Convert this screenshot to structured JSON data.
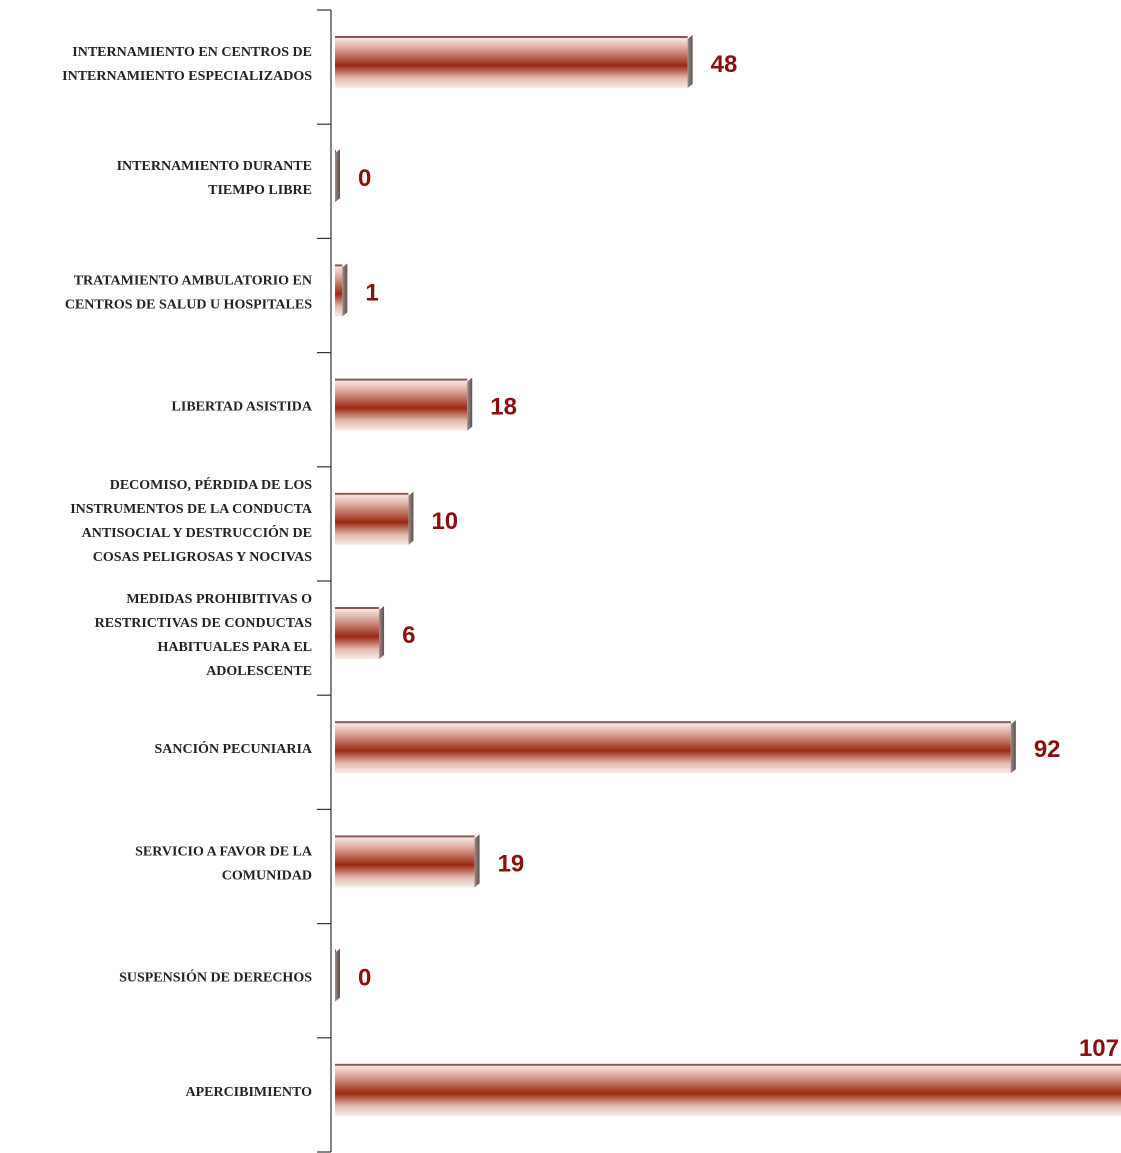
{
  "chart_data": {
    "type": "bar",
    "orientation": "horizontal",
    "title": "",
    "xlabel": "",
    "ylabel": "",
    "grid": false,
    "legend": "none",
    "xlim": [
      0,
      107
    ],
    "categories": [
      [
        "INTERNAMIENTO EN CENTROS DE",
        "INTERNAMIENTO ESPECIALIZADOS"
      ],
      [
        "INTERNAMIENTO DURANTE",
        "TIEMPO LIBRE"
      ],
      [
        "TRATAMIENTO AMBULATORIO EN",
        "CENTROS DE SALUD U HOSPITALES"
      ],
      [
        "LIBERTAD ASISTIDA"
      ],
      [
        "DECOMISO, PÉRDIDA DE LOS",
        "INSTRUMENTOS DE LA CONDUCTA",
        "ANTISOCIAL Y DESTRUCCIÓN DE",
        "COSAS PELIGROSAS Y NOCIVAS"
      ],
      [
        "MEDIDAS PROHIBITIVAS O",
        "RESTRICTIVAS DE CONDUCTAS",
        "HABITUALES PARA EL",
        "ADOLESCENTE"
      ],
      [
        "SANCIÓN PECUNIARIA"
      ],
      [
        "SERVICIO A FAVOR DE LA",
        "COMUNIDAD"
      ],
      [
        "SUSPENSIÓN DE DERECHOS"
      ],
      [
        "APERCIBIMIENTO"
      ]
    ],
    "values": [
      48,
      0,
      1,
      18,
      10,
      6,
      92,
      19,
      0,
      107
    ],
    "colors": {
      "bar_dark": "#9b2a12",
      "bar_light": "#f6e6e1",
      "bar_side": "#7a6a66",
      "value_text": "#8b0f0f",
      "axis": "#333333"
    }
  }
}
